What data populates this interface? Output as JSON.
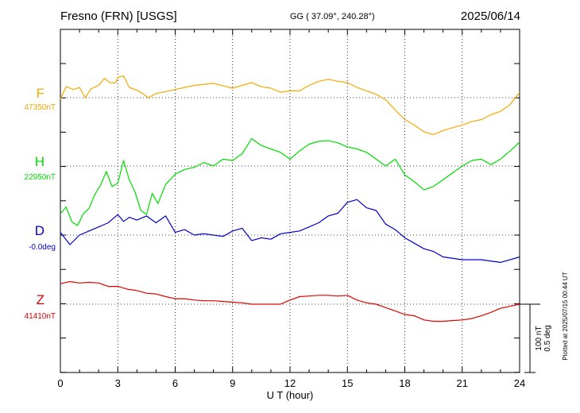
{
  "header": {
    "station": "Fresno (FRN)  [USGS]",
    "coords": "GG ( 37.09°, 240.28°)",
    "date": "2025/06/14"
  },
  "footer": {
    "plotted": "Plotted at 2025/07/15 00:44 UT",
    "scale_nt": "100 nT",
    "scale_deg": "0.5 deg"
  },
  "chart_data": {
    "type": "line",
    "xlabel": "U T (hour)",
    "xlim": [
      0,
      24
    ],
    "xticks": [
      "0",
      "3",
      "6",
      "9",
      "12",
      "15",
      "18",
      "21",
      "24"
    ],
    "grid": true,
    "series": [
      {
        "name": "F",
        "baseline_label": "47350nT",
        "color": "#f5a800",
        "x": [
          0,
          0.3,
          0.7,
          1.0,
          1.3,
          1.6,
          2.0,
          2.3,
          2.6,
          2.9,
          3.0,
          3.3,
          3.6,
          4.0,
          4.3,
          4.6,
          5.0,
          5.5,
          6.0,
          7.0,
          8.0,
          9.0,
          9.5,
          10.0,
          10.5,
          11.0,
          11.5,
          12.0,
          12.5,
          13.0,
          13.5,
          14.0,
          14.5,
          15.0,
          15.5,
          16.0,
          16.5,
          17.0,
          17.5,
          18.0,
          18.5,
          19.0,
          19.5,
          20.0,
          20.5,
          21.0,
          21.5,
          22.0,
          22.5,
          23.0,
          23.5,
          24.0
        ],
        "y": [
          47348,
          47366,
          47362,
          47365,
          47350,
          47363,
          47368,
          47378,
          47372,
          47372,
          47380,
          47382,
          47365,
          47361,
          47356,
          47350,
          47356,
          47359,
          47362,
          47368,
          47371,
          47364,
          47368,
          47372,
          47366,
          47364,
          47358,
          47360,
          47360,
          47368,
          47374,
          47377,
          47374,
          47372,
          47365,
          47360,
          47355,
          47347,
          47332,
          47318,
          47310,
          47300,
          47296,
          47302,
          47306,
          47310,
          47315,
          47318,
          47325,
          47330,
          47340,
          47358
        ]
      },
      {
        "name": "H",
        "baseline_label": "22950nT",
        "color": "#00dd00",
        "x": [
          0,
          0.3,
          0.6,
          0.9,
          1.2,
          1.5,
          1.8,
          2.1,
          2.4,
          2.7,
          3.0,
          3.3,
          3.6,
          3.9,
          4.2,
          4.5,
          4.8,
          5.1,
          5.5,
          6.0,
          6.5,
          7.0,
          7.5,
          8.0,
          8.5,
          9.0,
          9.5,
          10.0,
          10.5,
          11.0,
          11.5,
          12.0,
          12.5,
          13.0,
          13.5,
          14.0,
          14.5,
          15.0,
          15.5,
          16.0,
          16.5,
          17.0,
          17.5,
          18.0,
          18.5,
          19.0,
          19.5,
          20.0,
          20.5,
          21.0,
          21.5,
          22.0,
          22.5,
          23.0,
          23.5,
          24.0
        ],
        "y": [
          22880,
          22890,
          22868,
          22863,
          22880,
          22888,
          22908,
          22922,
          22942,
          22920,
          22925,
          22958,
          22930,
          22912,
          22885,
          22879,
          22910,
          22895,
          22923,
          22938,
          22945,
          22948,
          22955,
          22950,
          22960,
          22958,
          22968,
          22990,
          22980,
          22975,
          22970,
          22960,
          22972,
          22982,
          22986,
          22987,
          22984,
          22978,
          22975,
          22970,
          22960,
          22950,
          22960,
          22937,
          22927,
          22915,
          22920,
          22930,
          22940,
          22950,
          22958,
          22960,
          22952,
          22960,
          22972,
          22985
        ]
      },
      {
        "name": "D",
        "baseline_label": "-0.0deg",
        "color": "#0000cc",
        "x": [
          0,
          0.5,
          1.0,
          1.5,
          2.0,
          2.5,
          3.0,
          3.3,
          3.6,
          4.0,
          4.5,
          5.0,
          5.5,
          6.0,
          6.5,
          7.0,
          7.5,
          8.0,
          8.5,
          9.0,
          9.5,
          10.0,
          10.5,
          11.0,
          11.5,
          12.0,
          12.5,
          13.0,
          13.5,
          14.0,
          14.5,
          15.0,
          15.5,
          16.0,
          16.5,
          17.0,
          17.5,
          18.0,
          18.5,
          19.0,
          19.5,
          20.0,
          21.0,
          22.0,
          23.0,
          24.0
        ],
        "y": [
          0.02,
          -0.07,
          0.0,
          0.03,
          0.06,
          0.09,
          0.15,
          0.1,
          0.13,
          0.11,
          0.14,
          0.09,
          0.14,
          0.02,
          0.04,
          0.0,
          0.01,
          0.0,
          -0.01,
          0.03,
          0.05,
          -0.04,
          -0.02,
          -0.03,
          0.01,
          0.02,
          0.03,
          0.06,
          0.09,
          0.14,
          0.16,
          0.24,
          0.26,
          0.2,
          0.18,
          0.08,
          0.04,
          -0.02,
          -0.06,
          -0.1,
          -0.12,
          -0.16,
          -0.18,
          -0.18,
          -0.2,
          -0.16
        ]
      },
      {
        "name": "Z",
        "baseline_label": "41410nT",
        "color": "#e00000",
        "x": [
          0,
          0.5,
          1.0,
          1.5,
          2.0,
          2.5,
          3.0,
          3.5,
          4.0,
          4.5,
          5.0,
          5.5,
          6.0,
          6.5,
          7.0,
          7.5,
          8.0,
          8.5,
          9.0,
          9.5,
          10.0,
          10.5,
          11.0,
          11.5,
          12.0,
          12.5,
          13.0,
          13.5,
          14.0,
          14.5,
          15.0,
          15.5,
          16.0,
          16.5,
          17.0,
          17.5,
          18.0,
          18.5,
          19.0,
          19.5,
          20.0,
          20.5,
          21.0,
          21.5,
          22.0,
          22.5,
          23.0,
          23.5,
          24.0
        ],
        "y": [
          41440,
          41443,
          41441,
          41442,
          41441,
          41436,
          41436,
          41432,
          41430,
          41426,
          41425,
          41421,
          41418,
          41418,
          41416,
          41415,
          41415,
          41414,
          41413,
          41412,
          41410,
          41410,
          41410,
          41410,
          41416,
          41421,
          41422,
          41423,
          41423,
          41422,
          41423,
          41416,
          41412,
          41410,
          41405,
          41400,
          41395,
          41393,
          41387,
          41385,
          41385,
          41386,
          41387,
          41389,
          41393,
          41398,
          41404,
          41407,
          41410
        ]
      }
    ]
  }
}
